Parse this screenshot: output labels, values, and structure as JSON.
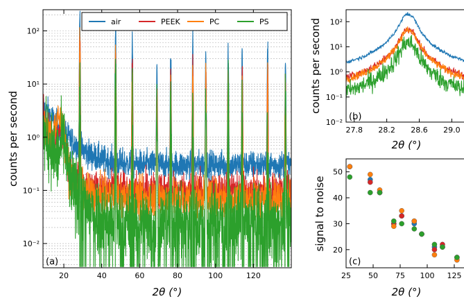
{
  "colors": {
    "air": "#1f77b4",
    "PEEK": "#d62728",
    "PC": "#ff7f0e",
    "PS": "#2ca02c"
  },
  "chart_data": [
    {
      "id": "a",
      "type": "line",
      "panel_label": "(a)",
      "xlabel": "2θ (°)",
      "ylabel": "counts per second",
      "xlim": [
        9,
        140
      ],
      "ylim": [
        0.0035,
        250
      ],
      "yscale": "log",
      "grid": true,
      "legend_position": "top",
      "x_ticks": [
        20,
        40,
        60,
        80,
        100,
        120
      ],
      "y_ticks": [
        {
          "value": 0.01,
          "label": "10⁻²"
        },
        {
          "value": 0.1,
          "label": "10⁻¹"
        },
        {
          "value": 1,
          "label": "10⁰"
        },
        {
          "value": 10,
          "label": "10¹"
        },
        {
          "value": 100,
          "label": "10²"
        }
      ],
      "peaks_2theta": [
        28.44,
        47.3,
        56.1,
        69.1,
        76.4,
        88.0,
        94.9,
        106.7,
        114.1,
        127.5,
        136.9
      ],
      "series": [
        {
          "name": "air",
          "peak_heights": [
            210,
            120,
            65,
            25,
            40,
            60,
            40,
            45,
            45,
            40,
            30
          ],
          "background_high_angle": 0.3
        },
        {
          "name": "PEEK",
          "peak_heights": [
            80,
            45,
            25,
            10,
            15,
            22,
            15,
            17,
            17,
            15,
            12
          ],
          "background_high_angle": 0.1
        },
        {
          "name": "PC",
          "peak_heights": [
            60,
            35,
            20,
            8,
            12,
            18,
            12,
            14,
            14,
            12,
            10
          ],
          "background_high_angle": 0.07
        },
        {
          "name": "PS",
          "peak_heights": [
            25,
            15,
            9,
            4,
            6,
            8,
            6,
            7,
            7,
            6,
            5
          ],
          "background_high_angle": 0.025
        }
      ]
    },
    {
      "id": "b",
      "type": "line",
      "panel_label": "(b)",
      "xlabel": "2θ (°)",
      "ylabel": "counts per second",
      "xlim": [
        27.7,
        29.15
      ],
      "ylim": [
        0.01,
        300
      ],
      "yscale": "log",
      "x_ticks": [
        27.8,
        28.2,
        28.6,
        29.0
      ],
      "x_tick_labels": [
        "27.8",
        "28.2",
        "28.6",
        "29.0"
      ],
      "y_ticks": [
        {
          "value": 0.01,
          "label": "10⁻²"
        },
        {
          "value": 0.1,
          "label": "10⁻¹"
        },
        {
          "value": 1,
          "label": "10⁰"
        },
        {
          "value": 10,
          "label": "10¹"
        },
        {
          "value": 100,
          "label": "10²"
        }
      ],
      "series": [
        {
          "name": "air",
          "peak": 200,
          "background": 0.55
        },
        {
          "name": "PEEK",
          "peak": 50,
          "background": 0.13
        },
        {
          "name": "PC",
          "peak": 45,
          "background": 0.09
        },
        {
          "name": "PS",
          "peak": 15,
          "background": 0.025
        }
      ]
    },
    {
      "id": "c",
      "type": "scatter",
      "panel_label": "(c)",
      "xlabel": "2θ (°)",
      "ylabel": "signal to noise",
      "xlim": [
        25,
        134
      ],
      "ylim": [
        13,
        55
      ],
      "x_ticks": [
        25,
        50,
        75,
        100,
        125
      ],
      "y_ticks": [
        20,
        30,
        40,
        50
      ],
      "x": [
        28.4,
        47.3,
        56.1,
        69.1,
        76.4,
        88.0,
        94.9,
        106.7,
        114.1,
        127.5
      ],
      "series": [
        {
          "name": "air",
          "values": [
            52,
            47,
            42,
            30,
            33,
            30,
            26,
            21,
            21,
            17
          ]
        },
        {
          "name": "PEEK",
          "values": [
            52,
            46,
            42,
            30,
            33,
            31,
            26,
            20,
            22,
            17
          ]
        },
        {
          "name": "PC",
          "values": [
            52,
            49,
            43,
            29,
            35,
            31,
            26,
            18,
            21,
            16
          ]
        },
        {
          "name": "PS",
          "values": [
            48,
            42,
            42,
            31,
            30,
            28,
            26,
            22,
            21,
            17
          ]
        }
      ]
    }
  ]
}
